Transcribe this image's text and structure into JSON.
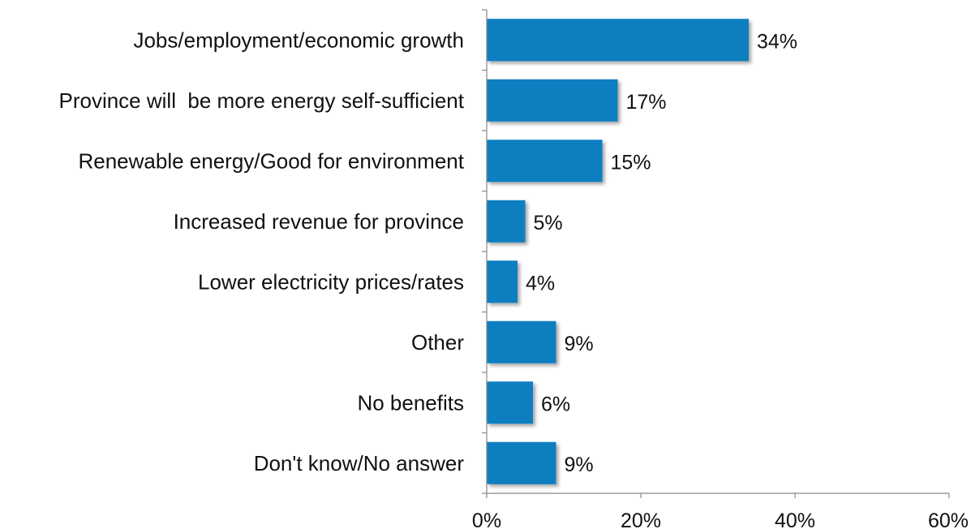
{
  "chart_data": {
    "type": "bar",
    "orientation": "horizontal",
    "categories": [
      "Jobs/employment/economic growth",
      "Province will  be more energy self-sufficient",
      "Renewable energy/Good for environment",
      "Increased revenue for province",
      "Lower electricity prices/rates",
      "Other",
      "No benefits",
      "Don't know/No answer"
    ],
    "values": [
      34,
      17,
      15,
      5,
      4,
      9,
      6,
      9
    ],
    "value_labels": [
      "34%",
      "17%",
      "15%",
      "5%",
      "4%",
      "9%",
      "6%",
      "9%"
    ],
    "xlim": [
      0,
      60
    ],
    "x_ticks": [
      0,
      20,
      40,
      60
    ],
    "x_tick_labels": [
      "0%",
      "20%",
      "40%",
      "60%"
    ],
    "title": "",
    "xlabel": "",
    "ylabel": "",
    "grid": false,
    "legend": "none",
    "bar_color": "#0a7fc1"
  }
}
